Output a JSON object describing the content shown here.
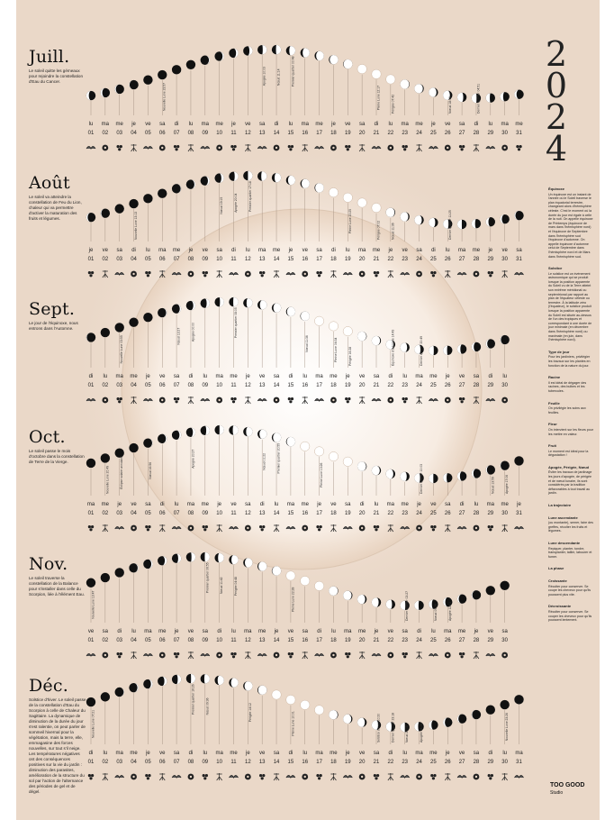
{
  "year_digits": [
    "2",
    "0",
    "2",
    "4"
  ],
  "months": [
    {
      "name": "Juill.",
      "desc": "Le soleil quitte les gémeaux pour rejoindre la constellation d'Eau du Cancer.",
      "start_weekday": 0,
      "days": 31,
      "labels": [
        {
          "day": 6,
          "text": "Nouvelle Lune 23:57"
        },
        {
          "day": 13,
          "text": "Apogée 10:03"
        },
        {
          "day": 14,
          "text": "Nœud 11:14"
        },
        {
          "day": 15,
          "text": "Premier quartier 00:48"
        },
        {
          "day": 21,
          "text": "Pleine Lune 12:17"
        },
        {
          "day": 22,
          "text": "Périgée 07:42"
        },
        {
          "day": 26,
          "text": "Nœud 18:53"
        },
        {
          "day": 28,
          "text": "Dernier quartier 04:51"
        }
      ]
    },
    {
      "name": "Août",
      "desc": "Le soleil va atteindre la constellation de Feu du Lion, chaleur qui va permettre d'activer la maturation des fruits et légumes.",
      "start_weekday": 3,
      "days": 31,
      "labels": [
        {
          "day": 4,
          "text": "Nouvelle Lune 13:13"
        },
        {
          "day": 10,
          "text": "Nœud 19:15"
        },
        {
          "day": 11,
          "text": "Apogée 20:04"
        },
        {
          "day": 12,
          "text": "Premier quartier 17:18"
        },
        {
          "day": 19,
          "text": "Pleine Lune 20:25"
        },
        {
          "day": 21,
          "text": "Périgée 07:02"
        },
        {
          "day": 22,
          "text": "Nœud 11:36"
        },
        {
          "day": 26,
          "text": "Dernier quartier 11:25"
        }
      ]
    },
    {
      "name": "Sept.",
      "desc": "Le jour de l'équinoxe, nous entrons dans l'Automne.",
      "start_weekday": 6,
      "days": 30,
      "labels": [
        {
          "day": 3,
          "text": "Nouvelle Lune 03:55"
        },
        {
          "day": 7,
          "text": "Nœud 13:27"
        },
        {
          "day": 8,
          "text": "Apogée 00:00"
        },
        {
          "day": 11,
          "text": "Premier quartier 08:05"
        },
        {
          "day": 16,
          "text": "Nœud 11:36"
        },
        {
          "day": 18,
          "text": "Pleine Lune 04:34"
        },
        {
          "day": 19,
          "text": "Périgée 16:28"
        },
        {
          "day": 22,
          "text": "Équinoxe d'automne 14:43"
        },
        {
          "day": 24,
          "text": "Dernier quartier 20:49"
        }
      ]
    },
    {
      "name": "Oct.",
      "desc": "Le soleil passe le mois d'octobre dans la constellation de Terre de la Vierge.",
      "start_weekday": 1,
      "days": 31,
      "labels": [
        {
          "day": 2,
          "text": "Nouvelle Lune 20:49"
        },
        {
          "day": 3,
          "text": "Éclipse solaire annulaire"
        },
        {
          "day": 5,
          "text": "Nœud 16:56"
        },
        {
          "day": 8,
          "text": "Apogée 20:27"
        },
        {
          "day": 13,
          "text": "Nœud 01:22"
        },
        {
          "day": 14,
          "text": "Premier quartier 20:55"
        },
        {
          "day": 17,
          "text": "Pleine Lune 13:26"
        },
        {
          "day": 24,
          "text": "Dernier quartier 10:03"
        },
        {
          "day": 29,
          "text": "Nœud 13:59"
        },
        {
          "day": 30,
          "text": "Apogée 17:06"
        }
      ]
    },
    {
      "name": "Nov.",
      "desc": "Le soleil traverse la constellation de la Balance pour s'installer dans celle du Scorpion, liée à l'élément Eau.",
      "start_weekday": 4,
      "days": 30,
      "labels": [
        {
          "day": 1,
          "text": "Nouvelle Lune 13:47"
        },
        {
          "day": 9,
          "text": "Premier quartier 06:55"
        },
        {
          "day": 10,
          "text": "Nœud 11:42"
        },
        {
          "day": 11,
          "text": "Périgée 04:48"
        },
        {
          "day": 15,
          "text": "Pleine Lune 22:28"
        },
        {
          "day": 23,
          "text": "Dernier quartier 02:27"
        },
        {
          "day": 25,
          "text": "Nœud 09:16"
        },
        {
          "day": 26,
          "text": "Apogée 12:01"
        }
      ]
    },
    {
      "name": "Déc.",
      "desc": "Solstice d'hiver. Le soleil passe de la constellation d'Eau du Scorpion à celle de Chaleur du Sagittaire. La dynamique de diminution de la durée du jour s'est ralentie, on peut parler de sommeil hivernal pour la végétation, mais la terre, elle, emmagasine des forces nouvelles, sur tout s'il neige. Les températures négatives ont des conséquences positives sur la vie du jardin : diminution des parasites, amélioration de la structure du sol par l'action de l'alternance des périodes de gel et de dégel.",
      "start_weekday": 6,
      "days": 31,
      "labels": [
        {
          "day": 1,
          "text": "Nouvelle Lune 07:21"
        },
        {
          "day": 8,
          "text": "Premier quartier 16:26"
        },
        {
          "day": 9,
          "text": "Nœud 09:36"
        },
        {
          "day": 12,
          "text": "Périgée 14:12"
        },
        {
          "day": 15,
          "text": "Pleine Lune 10:01"
        },
        {
          "day": 21,
          "text": "Solstice d'hiver 10:20"
        },
        {
          "day": 22,
          "text": "Dernier quartier 23:18"
        },
        {
          "day": 23,
          "text": "Nœud 22:08"
        },
        {
          "day": 24,
          "text": "Apogée 08:28"
        },
        {
          "day": 30,
          "text": "Nouvelle Lune 23:26"
        }
      ]
    }
  ],
  "weekday_labels": [
    "lu",
    "ma",
    "me",
    "je",
    "ve",
    "sa",
    "di"
  ],
  "sidebar": [
    {
      "title": "Équinoxe",
      "body": "Un équinoxe est un instant de l'année où le Soleil traverse le plan équatorial terrestre, changeant alors d'hémisphère céleste. C'est le moment où la durée du jour est égale à celle de la nuit. On appelle équinoxe de Printemps (équinoxe de mars dans l'hémisphère nord) et l'équinoxe de Septembre dans l'hémisphère sud l'équinoxe d'automne. On appelle équinoxe d'automne celui de Septembre dans l'hémisphère nord et de Mars dans l'hémisphère sud."
    },
    {
      "title": "Solstice",
      "body": "Le solstice est un événement astronomique qui se produit lorsque la position apparente du Soleil vu de la Terre atteint son extrême méridional ou septentrional par rapport au plan de l'équateur céleste ou terrestre. À la latitude zéro (l'équateur), le solstice produit lorsque la position apparente du Soleil est située au-dessus de l'un des tropiques et correspondant à une durée de jour minimale (en décembre dans l'hémisphère nord) ou maximale (en juin, dans l'hémisphère nord)."
    },
    {
      "title": "Type de jour",
      "body": "Pour les jardiniers, privilégier les travaux sur les plantes en fonction de la nature du jour."
    },
    {
      "title": "Racine",
      "body": "Il est idéal de dégager des racines, des bulbes et les tubercules."
    },
    {
      "title": "Feuille",
      "body": "On privilégie les soins aux feuilles."
    },
    {
      "title": "Fleur",
      "body": "On intervient sur les fleurs pour les mettre en valeur."
    },
    {
      "title": "Fruit",
      "body": "Le moment est idéal pour la dégustation !"
    },
    {
      "title": "Apogée, Périgée, Nœud",
      "body": "Éviter les travaux de jardinage les jours d'apogée, de périgée et de nœud lunaire, ils sont considérés par la tradition défavorables à tout travail au jardin."
    },
    {
      "title": "La trajectoire",
      "body": ""
    },
    {
      "title": "Lune ascendante",
      "body": "(ou montante), semer, faire des greffes, récolter les fruits et légumes."
    },
    {
      "title": "Lune descendante",
      "body": "Repiquer, planter, tondre, transplanter, tailler, labourer et fumer."
    },
    {
      "title": "La phase",
      "body": ""
    },
    {
      "title": "Croissante",
      "body": "Récolter pour conserver. Se coupe les cheveux pour qu'ils poussent plus vite."
    },
    {
      "title": "Décroissante",
      "body": "Récolter pour conserver. Se couper les cheveux pour qu'ils poussent lentement."
    }
  ],
  "brand": {
    "name1": "TOO GOOD",
    "name2": "Studio"
  },
  "colors": {
    "background": "#ead8c8",
    "ink": "#111111",
    "glow": "#ffffff",
    "ring": "#d9c2ad"
  }
}
